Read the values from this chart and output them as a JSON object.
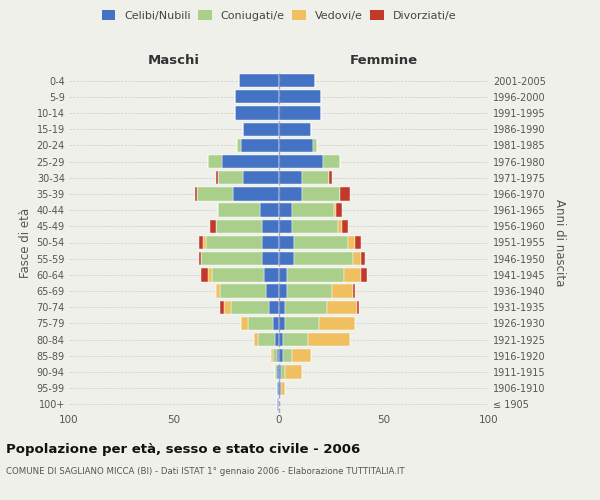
{
  "age_groups": [
    "100+",
    "95-99",
    "90-94",
    "85-89",
    "80-84",
    "75-79",
    "70-74",
    "65-69",
    "60-64",
    "55-59",
    "50-54",
    "45-49",
    "40-44",
    "35-39",
    "30-34",
    "25-29",
    "20-24",
    "15-19",
    "10-14",
    "5-9",
    "0-4"
  ],
  "birth_years": [
    "≤ 1905",
    "1906-1910",
    "1911-1915",
    "1916-1920",
    "1921-1925",
    "1926-1930",
    "1931-1935",
    "1936-1940",
    "1941-1945",
    "1946-1950",
    "1951-1955",
    "1956-1960",
    "1961-1965",
    "1966-1970",
    "1971-1975",
    "1976-1980",
    "1981-1985",
    "1986-1990",
    "1991-1995",
    "1996-2000",
    "2001-2005"
  ],
  "maschi": {
    "celibi": [
      1,
      1,
      1,
      1,
      2,
      3,
      5,
      6,
      7,
      8,
      8,
      8,
      9,
      22,
      17,
      27,
      18,
      17,
      21,
      21,
      19
    ],
    "coniugati": [
      0,
      0,
      1,
      2,
      8,
      12,
      18,
      22,
      25,
      29,
      27,
      22,
      20,
      17,
      12,
      7,
      2,
      0,
      0,
      0,
      0
    ],
    "vedovi": [
      0,
      0,
      0,
      1,
      2,
      3,
      3,
      2,
      2,
      0,
      1,
      0,
      0,
      0,
      0,
      0,
      0,
      0,
      0,
      0,
      0
    ],
    "divorziati": [
      0,
      0,
      0,
      0,
      0,
      0,
      2,
      0,
      3,
      1,
      2,
      3,
      0,
      1,
      1,
      0,
      0,
      0,
      0,
      0,
      0
    ]
  },
  "femmine": {
    "nubili": [
      0,
      1,
      1,
      2,
      2,
      3,
      3,
      4,
      4,
      7,
      7,
      6,
      6,
      11,
      11,
      21,
      16,
      15,
      20,
      20,
      17
    ],
    "coniugate": [
      0,
      0,
      2,
      4,
      12,
      16,
      20,
      21,
      27,
      28,
      26,
      22,
      20,
      18,
      13,
      8,
      2,
      0,
      0,
      0,
      0
    ],
    "vedove": [
      0,
      2,
      8,
      9,
      20,
      17,
      14,
      10,
      8,
      4,
      3,
      2,
      1,
      0,
      0,
      0,
      0,
      0,
      0,
      0,
      0
    ],
    "divorziate": [
      0,
      0,
      0,
      0,
      0,
      0,
      1,
      1,
      3,
      2,
      3,
      3,
      3,
      5,
      1,
      0,
      0,
      0,
      0,
      0,
      0
    ]
  },
  "colors": {
    "celibi": "#4472C4",
    "coniugati": "#AACF8B",
    "vedovi": "#F0C060",
    "divorziati": "#C0392B"
  },
  "xlim": [
    -100,
    100
  ],
  "xticks": [
    -100,
    -50,
    0,
    50,
    100
  ],
  "xticklabels": [
    "100",
    "50",
    "0",
    "50",
    "100"
  ],
  "title": "Popolazione per età, sesso e stato civile - 2006",
  "subtitle": "COMUNE DI SAGLIANO MICCA (BI) - Dati ISTAT 1° gennaio 2006 - Elaborazione TUTTITALIA.IT",
  "ylabel_left": "Fasce di età",
  "ylabel_right": "Anni di nascita",
  "label_maschi": "Maschi",
  "label_femmine": "Femmine",
  "legend_labels": [
    "Celibi/Nubili",
    "Coniugati/e",
    "Vedovi/e",
    "Divorziati/e"
  ],
  "bg_color": "#f0f0eb",
  "bar_height": 0.82
}
